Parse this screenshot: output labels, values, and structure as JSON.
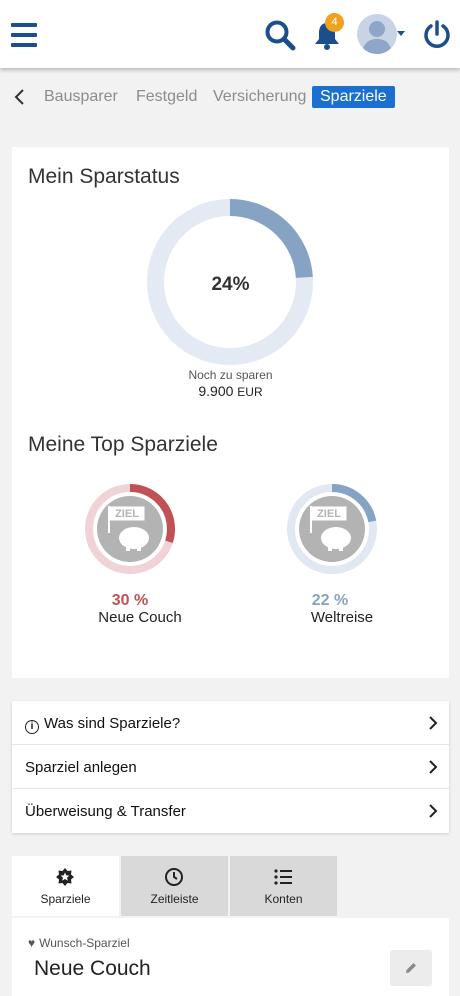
{
  "header": {
    "notification_count": "4",
    "icons": [
      "menu-icon",
      "search-icon",
      "bell-icon",
      "avatar",
      "power-icon"
    ]
  },
  "category_tabs": [
    {
      "label": "Bausparer",
      "active": false
    },
    {
      "label": "Festgeld",
      "active": false
    },
    {
      "label": "Versicherung",
      "active": false
    },
    {
      "label": "Sparziele",
      "active": true
    }
  ],
  "status": {
    "title": "Mein Sparstatus",
    "percent_label": "24%",
    "progress": 0.24,
    "remaining_label": "Noch zu sparen",
    "remaining_amount": "9.900",
    "currency": "EUR"
  },
  "top_goals": {
    "title": "Meine Top Sparziele",
    "badge_text": "ZIEL",
    "goals": [
      {
        "percent_label": "30 %",
        "progress": 0.3,
        "name": "Neue Couch",
        "color": "#c25156",
        "track": "#f0d3d6"
      },
      {
        "percent_label": "22 %",
        "progress": 0.22,
        "name": "Weltreise",
        "color": "#87a3c4",
        "track": "#e1e8f2"
      }
    ]
  },
  "links": [
    {
      "label": "Was sind Sparziele?",
      "info_icon": true
    },
    {
      "label": "Sparziel anlegen",
      "info_icon": false
    },
    {
      "label": "Überweisung & Transfer",
      "info_icon": false
    }
  ],
  "bottom_tabs": [
    {
      "label": "Sparziele",
      "icon": "star-badge-icon",
      "active": true
    },
    {
      "label": "Zeitleiste",
      "icon": "clock-icon",
      "active": false
    },
    {
      "label": "Konten",
      "icon": "list-icon",
      "active": false
    }
  ],
  "wish_goal": {
    "label": "Wunsch-Sparziel",
    "title": "Neue Couch"
  },
  "colors": {
    "brand": "#1a4f8b",
    "accent": "#1a6fd0",
    "badge": "#f0a21e",
    "main_ring": "#87a3c4",
    "main_track": "#e3eaf3"
  }
}
